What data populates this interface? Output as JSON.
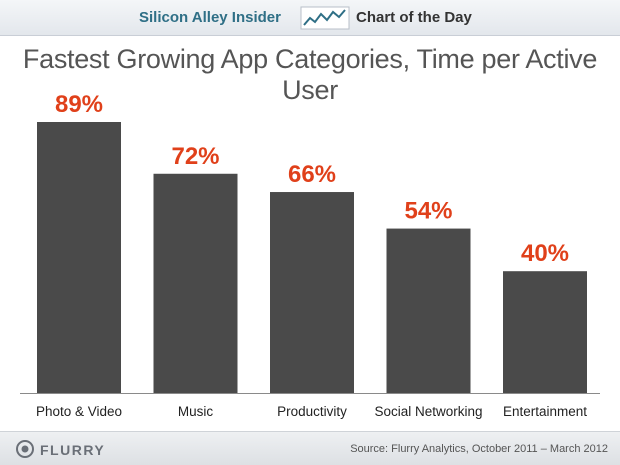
{
  "banner": {
    "site_name": "Silicon Alley Insider",
    "icon": "trend-line-icon",
    "section": "Chart of the Day",
    "site_color": "#2f6f86"
  },
  "chart_data": {
    "type": "bar",
    "title": "Fastest Growing App Categories, Time per Active User",
    "xlabel": "",
    "ylabel": "",
    "categories": [
      "Photo & Video",
      "Music",
      "Productivity",
      "Social Networking",
      "Entertainment"
    ],
    "values": [
      89,
      72,
      66,
      54,
      40
    ],
    "data_labels": [
      "89%",
      "72%",
      "66%",
      "54%",
      "40%"
    ],
    "unit": "%",
    "ylim": [
      0,
      100
    ],
    "grid": false,
    "legend": "none",
    "bar_color": "#4a4a4a",
    "label_color": "#e0401a"
  },
  "footer": {
    "logo_icon": "flurry-logo-icon",
    "logo_text": "FLURRY",
    "source": "Source: Flurry Analytics, October 2011 – March 2012"
  }
}
